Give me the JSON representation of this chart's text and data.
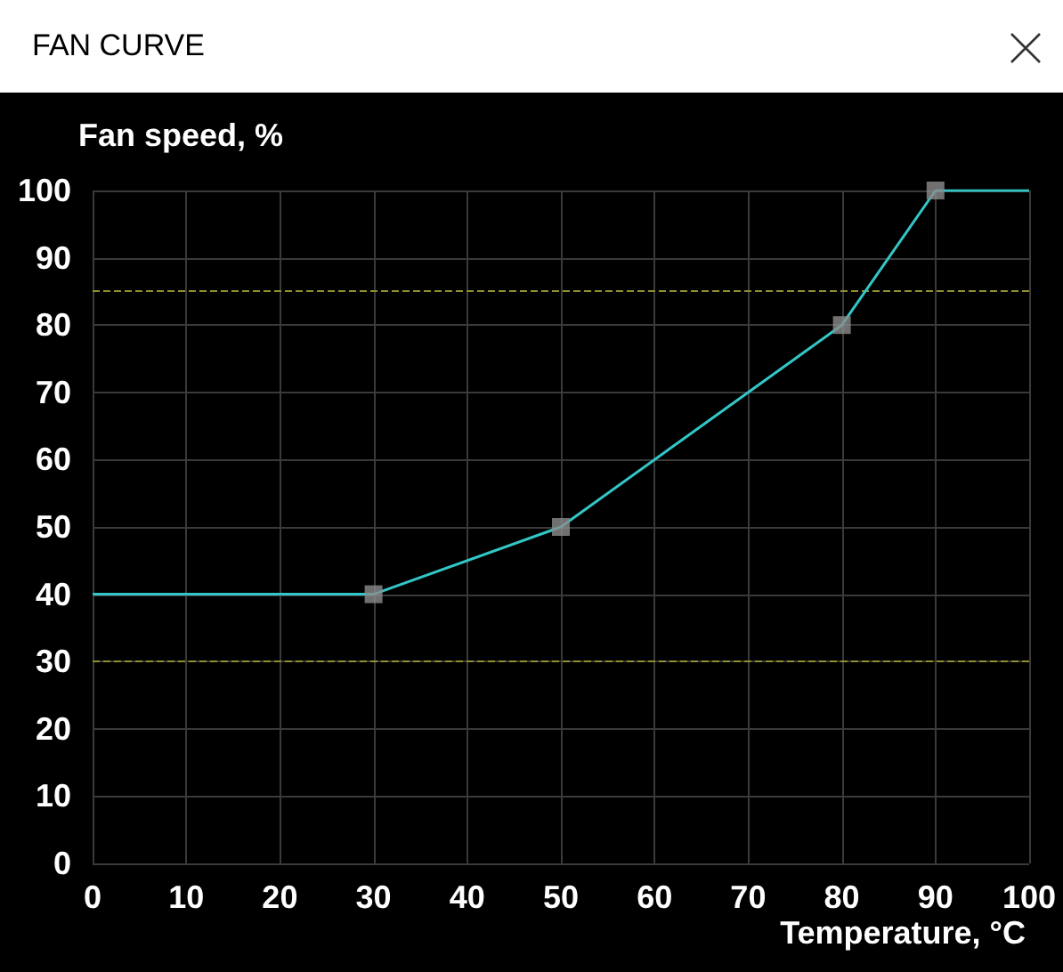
{
  "chart_data": {
    "type": "line",
    "title": "FAN CURVE",
    "xlabel": "Temperature, °C",
    "ylabel": "Fan speed, %",
    "series": [
      {
        "color": "#33c6c6",
        "marker": "none",
        "x": [
          0,
          30,
          50,
          80,
          90,
          100
        ],
        "values": [
          40,
          40,
          50,
          80,
          100,
          100
        ]
      },
      {
        "type": "scatter",
        "color": "#8c8c8c",
        "marker": "square",
        "x": [
          30,
          50,
          80,
          90
        ],
        "values": [
          40,
          50,
          80,
          100
        ]
      }
    ],
    "xlim": [
      0,
      100
    ],
    "xticks": [
      0,
      10,
      20,
      30,
      40,
      50,
      60,
      70,
      80,
      90,
      100
    ],
    "ylim": [
      0,
      100
    ],
    "yticks": [
      0,
      10,
      20,
      30,
      40,
      50,
      60,
      70,
      80,
      90,
      100
    ],
    "grid": true,
    "ref_lines": [
      {
        "axis": "y",
        "value": 85,
        "color": "#8f8f2e",
        "line_style": "dashed"
      },
      {
        "axis": "y",
        "value": 30,
        "color": "#8f8f2e",
        "line_style": "dashed"
      }
    ]
  }
}
